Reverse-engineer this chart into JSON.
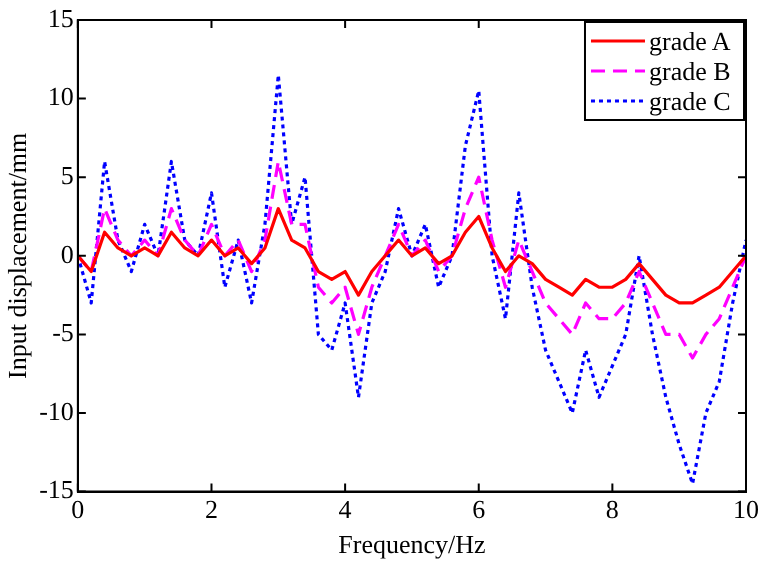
{
  "chart_data": {
    "type": "line",
    "xlabel": "Frequency/Hz",
    "ylabel": "Input displacement/mm",
    "x": [
      0,
      0.2,
      0.4,
      0.6,
      0.8,
      1.0,
      1.2,
      1.4,
      1.6,
      1.8,
      2.0,
      2.2,
      2.4,
      2.6,
      2.8,
      3.0,
      3.2,
      3.4,
      3.6,
      3.8,
      4.0,
      4.2,
      4.4,
      4.6,
      4.8,
      5.0,
      5.2,
      5.4,
      5.6,
      5.8,
      6.0,
      6.2,
      6.4,
      6.6,
      6.8,
      7.0,
      7.2,
      7.4,
      7.6,
      7.8,
      8.0,
      8.2,
      8.4,
      8.6,
      8.8,
      9.0,
      9.2,
      9.4,
      9.6,
      9.8,
      10
    ],
    "series": [
      {
        "name": "grade A",
        "color": "#ff0000",
        "line_style": "solid",
        "values": [
          0,
          -1,
          1.5,
          0.5,
          0,
          0.5,
          0,
          1.5,
          0.5,
          0,
          1,
          0,
          0.5,
          -0.5,
          0.5,
          3,
          1,
          0.5,
          -1,
          -1.5,
          -1,
          -2.5,
          -1,
          0,
          1,
          0,
          0.5,
          -0.5,
          0,
          1.5,
          2.5,
          0.5,
          -1,
          0,
          -0.5,
          -1.5,
          -2,
          -2.5,
          -1.5,
          -2,
          -2,
          -1.5,
          -0.5,
          -1.5,
          -2.5,
          -3,
          -3,
          -2.5,
          -2,
          -1,
          0
        ]
      },
      {
        "name": "grade B",
        "color": "#ff00ff",
        "line_style": "dashed",
        "values": [
          0,
          -1,
          3,
          1,
          0,
          1,
          0,
          3,
          1,
          0,
          2,
          0,
          1,
          -1,
          1,
          6,
          2,
          2,
          -2,
          -3,
          -2,
          -5,
          -2,
          0,
          2,
          0,
          1,
          -1,
          0,
          3,
          5,
          1,
          -2,
          1,
          -1,
          -3,
          -4,
          -5,
          -3,
          -4,
          -4,
          -3,
          -1,
          -3,
          -5,
          -5,
          -6.5,
          -5,
          -4,
          -2,
          0
        ]
      },
      {
        "name": "grade C",
        "color": "#0000ff",
        "line_style": "dotted",
        "values": [
          0,
          -3,
          6,
          1,
          -1,
          2,
          0,
          6,
          1,
          0,
          4,
          -2,
          1,
          -3,
          2,
          11.5,
          2,
          5,
          -5,
          -6,
          -3,
          -9,
          -3,
          -1,
          3,
          0,
          2,
          -2,
          0,
          7,
          10.5,
          0,
          -4,
          4,
          -2,
          -6,
          -8,
          -10,
          -6,
          -9,
          -7,
          -5,
          0,
          -5,
          -9,
          -12,
          -14.5,
          -10,
          -8,
          -3,
          1
        ]
      }
    ],
    "xlim": [
      0,
      10
    ],
    "xticks": [
      0,
      2,
      4,
      6,
      8,
      10
    ],
    "ylim": [
      -15,
      15
    ],
    "yticks": [
      -15,
      -10,
      -5,
      0,
      5,
      10,
      15
    ],
    "grid": false,
    "legend": "top right",
    "marker": "none"
  }
}
